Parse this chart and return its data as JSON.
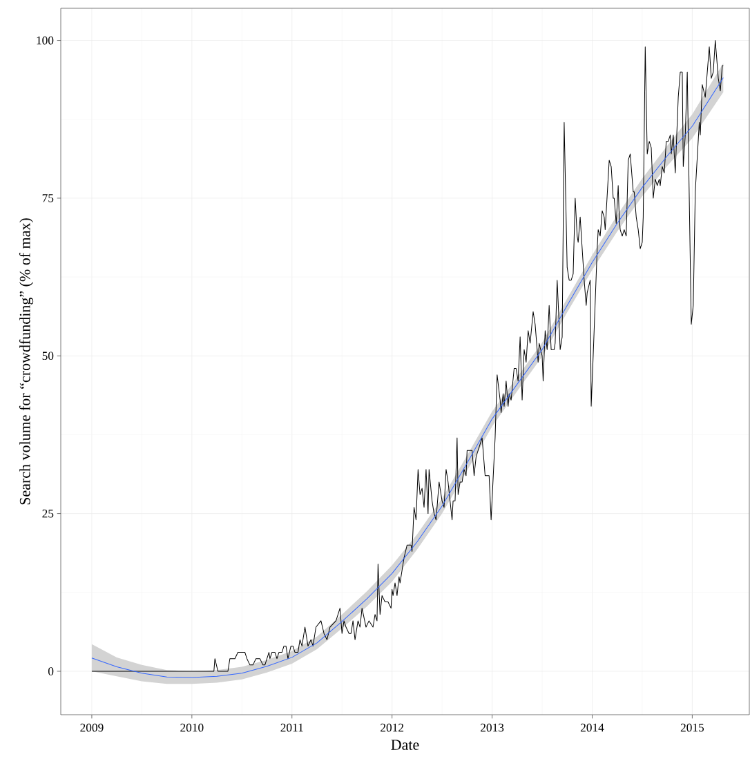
{
  "chart_data": {
    "type": "line",
    "xlabel": "Date",
    "ylabel": "Search volume for “crowdfunding” (% of max)",
    "xlim": [
      2008.69,
      2015.57
    ],
    "ylim": [
      -6.9,
      105.1
    ],
    "xticks": [
      2009,
      2010,
      2011,
      2012,
      2013,
      2014,
      2015
    ],
    "yticks": [
      0,
      25,
      50,
      75,
      100
    ],
    "grid": true,
    "series": [
      {
        "color": "#000000",
        "x": [
          2009.0,
          2010.22,
          2010.23,
          2010.26,
          2010.36,
          2010.38,
          2010.43,
          2010.46,
          2010.53,
          2010.55,
          2010.58,
          2010.61,
          2010.64,
          2010.68,
          2010.71,
          2010.73,
          2010.77,
          2010.78,
          2010.8,
          2010.83,
          2010.85,
          2010.87,
          2010.9,
          2010.92,
          2010.94,
          2010.96,
          2010.99,
          2011.01,
          2011.03,
          2011.06,
          2011.08,
          2011.1,
          2011.13,
          2011.16,
          2011.19,
          2011.21,
          2011.24,
          2011.29,
          2011.32,
          2011.35,
          2011.38,
          2011.44,
          2011.48,
          2011.5,
          2011.52,
          2011.54,
          2011.57,
          2011.59,
          2011.61,
          2011.63,
          2011.66,
          2011.68,
          2011.7,
          2011.74,
          2011.77,
          2011.81,
          2011.83,
          2011.85,
          2011.86,
          2011.88,
          2011.9,
          2011.93,
          2011.96,
          2011.99,
          2012.0,
          2012.01,
          2012.03,
          2012.05,
          2012.07,
          2012.08,
          2012.11,
          2012.12,
          2012.15,
          2012.19,
          2012.2,
          2012.22,
          2012.24,
          2012.26,
          2012.28,
          2012.3,
          2012.32,
          2012.34,
          2012.36,
          2012.37,
          2012.4,
          2012.42,
          2012.44,
          2012.47,
          2012.5,
          2012.52,
          2012.54,
          2012.56,
          2012.58,
          2012.6,
          2012.61,
          2012.63,
          2012.65,
          2012.66,
          2012.68,
          2012.7,
          2012.72,
          2012.74,
          2012.75,
          2012.8,
          2012.82,
          2012.84,
          2012.9,
          2012.93,
          2012.97,
          2012.99,
          2013.03,
          2013.05,
          2013.08,
          2013.09,
          2013.11,
          2013.12,
          2013.14,
          2013.16,
          2013.17,
          2013.19,
          2013.22,
          2013.24,
          2013.26,
          2013.28,
          2013.3,
          2013.32,
          2013.34,
          2013.36,
          2013.38,
          2013.41,
          2013.43,
          2013.46,
          2013.47,
          2013.5,
          2013.51,
          2013.53,
          2013.55,
          2013.57,
          2013.59,
          2013.62,
          2013.63,
          2013.65,
          2013.67,
          2013.68,
          2013.7,
          2013.72,
          2013.75,
          2013.77,
          2013.79,
          2013.81,
          2013.83,
          2013.85,
          2013.86,
          2013.88,
          2013.92,
          2013.94,
          2013.95,
          2013.98,
          2013.99,
          2014.01,
          2014.05,
          2014.06,
          2014.08,
          2014.1,
          2014.12,
          2014.13,
          2014.17,
          2014.19,
          2014.21,
          2014.22,
          2014.24,
          2014.26,
          2014.27,
          2014.28,
          2014.3,
          2014.32,
          2014.34,
          2014.36,
          2014.38,
          2014.41,
          2014.42,
          2014.44,
          2014.46,
          2014.48,
          2014.5,
          2014.51,
          2014.53,
          2014.55,
          2014.57,
          2014.59,
          2014.61,
          2014.63,
          2014.65,
          2014.67,
          2014.68,
          2014.7,
          2014.72,
          2014.74,
          2014.76,
          2014.78,
          2014.79,
          2014.81,
          2014.83,
          2014.86,
          2014.88,
          2014.9,
          2014.91,
          2014.93,
          2014.95,
          2014.99,
          2015.01,
          2015.03,
          2015.07,
          2015.08,
          2015.1,
          2015.13,
          2015.17,
          2015.19,
          2015.21,
          2015.23,
          2015.26,
          2015.28,
          2015.3,
          2015.31
        ],
        "values": [
          0,
          0,
          2,
          0,
          0,
          2,
          2,
          3,
          3,
          2,
          1,
          1,
          2,
          2,
          1,
          1,
          3,
          2,
          3,
          3,
          2,
          3,
          3,
          4,
          4,
          2,
          4,
          4,
          3,
          3,
          5,
          4,
          7,
          4,
          5,
          4,
          7,
          8,
          6,
          5,
          7,
          8,
          10,
          6,
          8,
          7,
          6,
          6,
          8,
          5,
          8,
          7,
          10,
          7,
          8,
          7,
          9,
          8,
          17,
          9,
          12,
          11,
          11,
          10,
          13,
          12,
          14,
          12,
          15,
          14,
          17,
          18,
          20,
          20,
          19,
          26,
          24,
          32,
          28,
          29,
          26,
          32,
          25,
          32,
          27,
          25,
          24,
          30,
          27,
          26,
          32,
          30,
          27,
          24,
          27,
          27,
          37,
          28,
          30,
          30,
          32,
          31,
          35,
          35,
          31,
          34,
          37,
          31,
          31,
          24,
          37,
          47,
          43,
          41,
          44,
          42,
          46,
          42,
          44,
          43,
          48,
          48,
          46,
          53,
          43,
          51,
          49,
          54,
          52,
          57,
          55,
          49,
          52,
          50,
          46,
          54,
          51,
          58,
          51,
          51,
          52,
          62,
          55,
          51,
          53,
          87,
          64,
          62,
          62,
          63,
          75,
          69,
          68,
          72,
          62,
          58,
          60,
          62,
          42,
          50,
          67,
          70,
          69,
          73,
          72,
          70,
          81,
          80,
          75,
          75,
          71,
          77,
          72,
          70,
          69,
          70,
          69,
          81,
          82,
          76,
          76,
          72,
          70,
          67,
          68,
          72,
          99,
          82,
          84,
          83,
          75,
          78,
          77,
          78,
          77,
          80,
          79,
          84,
          84,
          85,
          82,
          85,
          79,
          91,
          95,
          95,
          80,
          85,
          95,
          55,
          58,
          76,
          87,
          85,
          93,
          91,
          99,
          94,
          95,
          100,
          94,
          92,
          96,
          96
        ]
      },
      {
        "color": "#3366ff",
        "x": [
          2009.0,
          2009.25,
          2009.5,
          2009.75,
          2010.0,
          2010.25,
          2010.5,
          2010.75,
          2011.0,
          2011.25,
          2011.5,
          2011.75,
          2012.0,
          2012.25,
          2012.5,
          2012.75,
          2013.0,
          2013.25,
          2013.5,
          2013.75,
          2014.0,
          2014.25,
          2014.5,
          2014.75,
          2015.0,
          2015.31
        ],
        "values": [
          2.1,
          0.7,
          -0.3,
          -0.9,
          -1.0,
          -0.8,
          -0.3,
          0.8,
          2.2,
          4.5,
          7.9,
          11.5,
          15.5,
          20.5,
          26.2,
          33,
          40,
          45.5,
          51,
          58,
          64.8,
          71,
          76.7,
          81.7,
          86.4,
          94.1
        ],
        "lower": [
          0.0,
          -0.8,
          -1.6,
          -2.0,
          -2.0,
          -1.8,
          -1.3,
          -0.2,
          1.2,
          3.5,
          6.8,
          10.3,
          14.2,
          19.3,
          25.0,
          31.8,
          38.8,
          44.4,
          49.9,
          56.9,
          63.6,
          69.7,
          75.3,
          80.1,
          84.5,
          91.8
        ],
        "upper": [
          4.3,
          2.2,
          1.0,
          0.2,
          0.0,
          0.2,
          0.7,
          1.8,
          3.2,
          5.5,
          9.0,
          12.7,
          16.8,
          21.7,
          27.4,
          34.2,
          41.2,
          46.6,
          52.1,
          59.1,
          66.0,
          72.3,
          78.1,
          83.3,
          88.3,
          96.4
        ]
      }
    ]
  }
}
